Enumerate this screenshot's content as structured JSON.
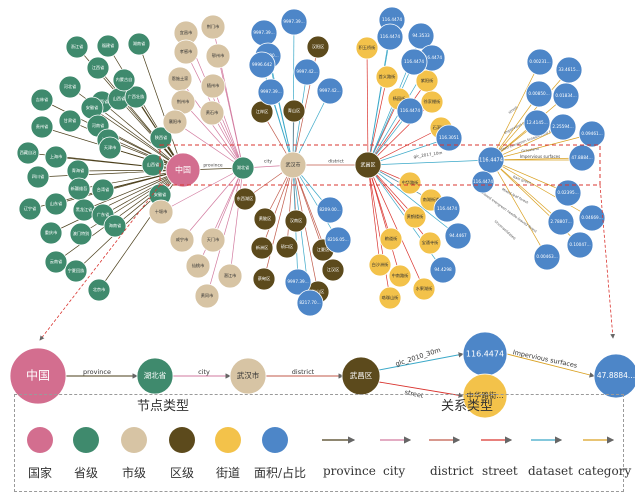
{
  "colors": {
    "country": "#d36e8f",
    "province": "#3f8a6d",
    "city": "#d7c4a4",
    "district": "#5c4a1c",
    "street": "#f3c24a",
    "area": "#4d86c8",
    "edge_province": "#4a3e1a",
    "edge_city": "#d27a9f",
    "edge_district": "#c05a4a",
    "edge_street": "#d9342f",
    "edge_dataset": "#3aa8c8",
    "edge_category": "#d9a020"
  },
  "graph": {
    "center": {
      "country": "中国",
      "province": "湖北省",
      "city": "武汉市",
      "district": "武昌区",
      "street_hub": "",
      "area_hub": "116.4474"
    },
    "center_edges": [
      "province",
      "city",
      "district",
      "glc_2010_30m",
      "Impervious surfaces"
    ],
    "provinces": [
      "浙江省",
      "福建省",
      "湖南省",
      "江西省",
      "河北省",
      "陕西省",
      "安徽省",
      "山西省",
      "广西壮族",
      "内蒙古自",
      "吉林省",
      "甘肃省",
      "贵州省",
      "河南省",
      "江苏省",
      "西藏自治",
      "上海市",
      "青海省",
      "天津市",
      "四川省",
      "新疆维吾",
      "台湾省",
      "辽宁省",
      "山东省",
      "黑龙江省",
      "广东省",
      "重庆市",
      "澳门特别",
      "海南省",
      "云南省",
      "宁夏回族",
      "北京市"
    ],
    "cities": [
      "宜昌市",
      "荆门市",
      "孝感市",
      "鄂州市",
      "恩施土家",
      "随州市",
      "荆州市",
      "黄石市",
      "襄阳市",
      "十堰市",
      "咸宁市",
      "天门市",
      "仙桃市",
      "黄冈市",
      "潜江市"
    ],
    "districts": [
      "汉阳区",
      "江岸区",
      "青山区",
      "东西湖区",
      "黄陂区",
      "汉南区",
      "新洲区",
      "硚口区",
      "蔡甸区",
      "洪山区",
      "江汉区",
      "江夏区"
    ],
    "streets": [
      "积玉桥街",
      "首义路街",
      "杨园街",
      "紫阳街",
      "徐家棚街",
      "石洞街道",
      "中华路街",
      "南湖街道",
      "黄鹤楼街",
      "粮道街",
      "白沙洲街",
      "中南路街",
      "珞珈山街",
      "水果湖街",
      "宝通寺街"
    ],
    "area_values": [
      "9997.39...",
      "9997.39...",
      "9996.30...",
      "9996.642",
      "9997.42...",
      "9997.39...",
      "9997.42...",
      "8209.00...",
      "8216.05...",
      "9997.39...",
      "8217.70...",
      "116.4474",
      "94.3533",
      "116.4474",
      "116.4474",
      "116.3051",
      "116.4474",
      "116.4474",
      "94.4467",
      "116.4474",
      "94.4298",
      "0.00231...",
      "33.4615...",
      "0.00850...",
      "0.01834...",
      "12.4145...",
      "2.25594...",
      "0.09461...",
      "47.8884...",
      "0.02395...",
      "2.78807...",
      "0.04669...",
      "0.10047...",
      "0.00463..."
    ],
    "edge_labels": [
      "province",
      "city",
      "district",
      "glc_2010_30m",
      "gic_2017_10m",
      "street",
      "Impervious surfaces",
      "Closed evergreen broadleaved forest",
      "Rain green",
      "Mixed-leaf forest",
      "Closed evergreen needle-leaved forest",
      "Grassland",
      "Unconsolidated"
    ]
  },
  "highlight_path": {
    "country": "中国",
    "province": "湖北省",
    "city": "武汉市",
    "district": "武昌区",
    "area": "116.4474",
    "street": "中华路街...",
    "final_area": "47.8884...",
    "edge_province": "province",
    "edge_city": "city",
    "edge_district": "district",
    "edge_dataset": "glc_2010_30m",
    "edge_street": "street",
    "edge_category": "Impervious surfaces"
  },
  "legend": {
    "node_title": "节点类型",
    "relation_title": "关系类型",
    "node_types": [
      "国家",
      "省级",
      "市级",
      "区级",
      "街道",
      "面积/占比"
    ],
    "relation_types": [
      "province",
      "city",
      "district",
      "street",
      "dataset",
      "category"
    ]
  }
}
